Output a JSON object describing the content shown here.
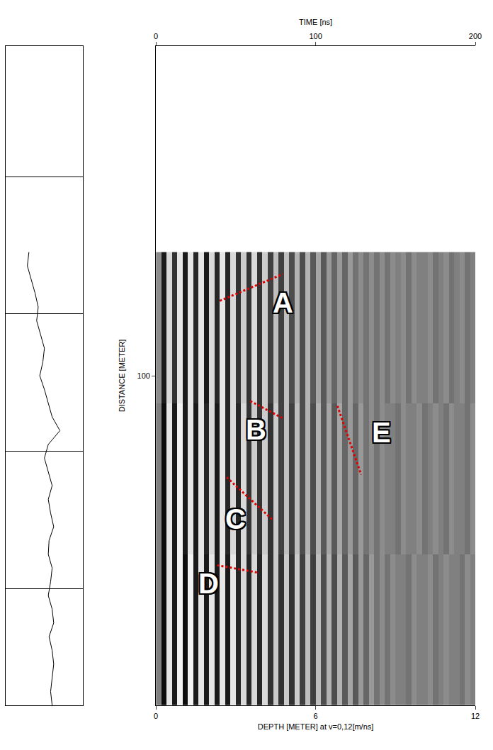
{
  "chart_data": {
    "type": "radargram",
    "x_title": "DEPTH [METER] at v=0,12[m/ns]",
    "x2_title": "TIME [ns]",
    "y_title": "DISTANCE [METER]",
    "xlim": [
      0,
      12
    ],
    "xticks": [
      0,
      6,
      12
    ],
    "x2lim": [
      0,
      200
    ],
    "x2ticks": [
      0,
      100,
      200
    ],
    "ylim": [
      52,
      148
    ],
    "yticks": [
      100
    ],
    "grid": false,
    "cells": {
      "x_start": 0.1,
      "x_step": 0.2,
      "y": [
        93,
        115,
        137
      ],
      "color_range": [
        0,
        1
      ],
      "z": [
        [
          0.55,
          0.1,
          0.85,
          0.2,
          0.9,
          0.1,
          0.9,
          0.15,
          0.9,
          0.1,
          0.85,
          0.15,
          0.9,
          0.15,
          0.85,
          0.2,
          0.8,
          0.2,
          0.85,
          0.2,
          0.8,
          0.25,
          0.75,
          0.25,
          0.75,
          0.3,
          0.7,
          0.3,
          0.7,
          0.35,
          0.65,
          0.35,
          0.6,
          0.4,
          0.6,
          0.4,
          0.6,
          0.45,
          0.55,
          0.45,
          0.55,
          0.45,
          0.55,
          0.45,
          0.55,
          0.5,
          0.55,
          0.45,
          0.55,
          0.5,
          0.5,
          0.55,
          0.45,
          0.5,
          0.55,
          0.45,
          0.5,
          0.55,
          0.45,
          0.5
        ],
        [
          0.5,
          0.05,
          0.9,
          0.1,
          0.95,
          0.1,
          0.9,
          0.1,
          0.9,
          0.15,
          0.85,
          0.1,
          0.9,
          0.15,
          0.85,
          0.15,
          0.85,
          0.2,
          0.8,
          0.2,
          0.8,
          0.2,
          0.8,
          0.25,
          0.75,
          0.25,
          0.75,
          0.3,
          0.7,
          0.3,
          0.7,
          0.35,
          0.65,
          0.35,
          0.65,
          0.4,
          0.6,
          0.4,
          0.6,
          0.45,
          0.55,
          0.45,
          0.55,
          0.5,
          0.5,
          0.45,
          0.55,
          0.5,
          0.5,
          0.55,
          0.45,
          0.5,
          0.55,
          0.5,
          0.45,
          0.55,
          0.5,
          0.5,
          0.45,
          0.55
        ],
        [
          0.5,
          0.05,
          0.9,
          0.1,
          0.95,
          0.05,
          0.95,
          0.1,
          0.9,
          0.1,
          0.9,
          0.1,
          0.9,
          0.1,
          0.9,
          0.15,
          0.85,
          0.15,
          0.85,
          0.15,
          0.85,
          0.2,
          0.8,
          0.2,
          0.8,
          0.2,
          0.8,
          0.25,
          0.75,
          0.25,
          0.75,
          0.3,
          0.7,
          0.3,
          0.7,
          0.35,
          0.65,
          0.35,
          0.6,
          0.4,
          0.6,
          0.45,
          0.55,
          0.45,
          0.55,
          0.5,
          0.5,
          0.45,
          0.55,
          0.5,
          0.5,
          0.55,
          0.45,
          0.5,
          0.55,
          0.5,
          0.5,
          0.45,
          0.55,
          0.5
        ]
      ]
    },
    "trace_panel": {
      "tick_labels": false,
      "xlim": [
        0,
        1
      ],
      "yticks": [
        71,
        91,
        111,
        131
      ],
      "y": [
        82,
        84,
        86,
        88,
        90,
        92,
        94,
        96,
        98,
        100,
        102,
        104,
        106,
        108,
        110,
        112,
        114,
        116,
        118,
        120,
        122,
        124,
        126,
        128,
        130,
        132,
        134,
        136,
        138,
        140,
        142,
        144,
        146,
        148
      ],
      "values": [
        0.3,
        0.28,
        0.33,
        0.38,
        0.42,
        0.4,
        0.45,
        0.5,
        0.48,
        0.44,
        0.5,
        0.55,
        0.6,
        0.7,
        0.55,
        0.5,
        0.55,
        0.6,
        0.55,
        0.58,
        0.62,
        0.56,
        0.55,
        0.6,
        0.58,
        0.55,
        0.6,
        0.62,
        0.56,
        0.6,
        0.62,
        0.6,
        0.58,
        0.6
      ],
      "color": "#000000"
    },
    "markings": {
      "color": "#e00000",
      "line_style": "dot",
      "items": [
        {
          "label": "A",
          "x": [
            2.4,
            4.77
          ],
          "y": [
            89.1,
            85.2
          ],
          "label_x": 4.77,
          "label_y": 89.4
        },
        {
          "label": "B",
          "x": [
            3.55,
            4.77
          ],
          "y": [
            103.7,
            106.2
          ],
          "label_x": 3.75,
          "label_y": 107.8
        },
        {
          "label": "E",
          "x": [
            6.82,
            7.71
          ],
          "y": [
            104.4,
            114.4
          ],
          "label_x": 8.48,
          "label_y": 108.3
        },
        {
          "label": "C",
          "x": [
            2.66,
            4.39
          ],
          "y": [
            114.8,
            121.0
          ],
          "label_x": 2.99,
          "label_y": 120.8
        },
        {
          "label": "D",
          "x": [
            2.3,
            3.88
          ],
          "y": [
            127.6,
            128.7
          ],
          "label_x": 1.97,
          "label_y": 130.2
        }
      ]
    }
  }
}
